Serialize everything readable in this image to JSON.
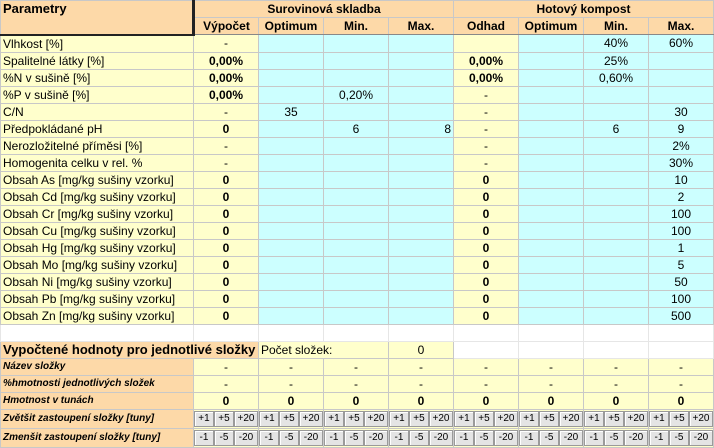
{
  "header": {
    "params_label": "Parametry",
    "group_raw": "Surovinová skladba",
    "group_compost": "Hotový kompost",
    "raw_cols": [
      "Výpočet",
      "Optimum",
      "Min.",
      "Max."
    ],
    "compost_cols": [
      "Odhad",
      "Optimum",
      "Min.",
      "Max."
    ]
  },
  "rows": [
    {
      "label": "Vlhkost [%]",
      "vyp": "-",
      "opt": "",
      "min": "",
      "max": "",
      "odh": "",
      "kopt": "",
      "kmin": "40%",
      "kmax": "60%"
    },
    {
      "label": "Spalitelné látky [%]",
      "vyp": "0,00%",
      "opt": "",
      "min": "",
      "max": "",
      "odh": "0,00%",
      "kopt": "",
      "kmin": "25%",
      "kmax": ""
    },
    {
      "label": "%N v sušině [%]",
      "vyp": "0,00%",
      "opt": "",
      "min": "",
      "max": "",
      "odh": "0,00%",
      "kopt": "",
      "kmin": "0,60%",
      "kmax": ""
    },
    {
      "label": "%P v sušině [%]",
      "vyp": "0,00%",
      "opt": "",
      "min": "0,20%",
      "max": "",
      "odh": "-",
      "kopt": "",
      "kmin": "",
      "kmax": ""
    },
    {
      "label": "C/N",
      "vyp": "-",
      "opt": "35",
      "min": "",
      "max": "",
      "odh": "-",
      "kopt": "",
      "kmin": "",
      "kmax": "30"
    },
    {
      "label": "Předpokládané pH",
      "vyp": "0",
      "opt": "",
      "min": "6",
      "max": "8",
      "odh": "-",
      "kopt": "",
      "kmin": "6",
      "kmax": "9"
    },
    {
      "label": "Nerozložitelné příměsi [%]",
      "vyp": "-",
      "opt": "",
      "min": "",
      "max": "",
      "odh": "-",
      "kopt": "",
      "kmin": "",
      "kmax": "2%"
    },
    {
      "label": "Homogenita celku v rel. %",
      "vyp": "-",
      "opt": "",
      "min": "",
      "max": "",
      "odh": "-",
      "kopt": "",
      "kmin": "",
      "kmax": "30%"
    },
    {
      "label": "Obsah As [mg/kg sušiny vzorku]",
      "vyp": "0",
      "opt": "",
      "min": "",
      "max": "",
      "odh": "0",
      "kopt": "",
      "kmin": "",
      "kmax": "10"
    },
    {
      "label": "Obsah Cd [mg/kg sušiny vzorku]",
      "vyp": "0",
      "opt": "",
      "min": "",
      "max": "",
      "odh": "0",
      "kopt": "",
      "kmin": "",
      "kmax": "2"
    },
    {
      "label": "Obsah Cr [mg/kg sušiny vzorku]",
      "vyp": "0",
      "opt": "",
      "min": "",
      "max": "",
      "odh": "0",
      "kopt": "",
      "kmin": "",
      "kmax": "100"
    },
    {
      "label": "Obsah Cu [mg/kg sušiny vzorku]",
      "vyp": "0",
      "opt": "",
      "min": "",
      "max": "",
      "odh": "0",
      "kopt": "",
      "kmin": "",
      "kmax": "100"
    },
    {
      "label": "Obsah Hg [mg/kg sušiny vzorku]",
      "vyp": "0",
      "opt": "",
      "min": "",
      "max": "",
      "odh": "0",
      "kopt": "",
      "kmin": "",
      "kmax": "1"
    },
    {
      "label": "Obsah Mo [mg/kg sušiny vzorku]",
      "vyp": "0",
      "opt": "",
      "min": "",
      "max": "",
      "odh": "0",
      "kopt": "",
      "kmin": "",
      "kmax": "5"
    },
    {
      "label": "Obsah Ni [mg/kg sušiny vzorku]",
      "vyp": "0",
      "opt": "",
      "min": "",
      "max": "",
      "odh": "0",
      "kopt": "",
      "kmin": "",
      "kmax": "50"
    },
    {
      "label": "Obsah Pb [mg/kg sušiny vzorku]",
      "vyp": "0",
      "opt": "",
      "min": "",
      "max": "",
      "odh": "0",
      "kopt": "",
      "kmin": "",
      "kmax": "100"
    },
    {
      "label": "Obsah Zn [mg/kg sušiny vzorku]",
      "vyp": "0",
      "opt": "",
      "min": "",
      "max": "",
      "odh": "0",
      "kopt": "",
      "kmin": "",
      "kmax": "500"
    }
  ],
  "section": {
    "title": "Vypočtené hodnoty pro jednotlivé složky",
    "count_label": "Počet složek:",
    "count_value": "0"
  },
  "components": {
    "name_label": "Název složky",
    "names": [
      "-",
      "-",
      "-",
      "-",
      "-",
      "-",
      "-",
      "-"
    ],
    "pct_label": "%hmotnosti jednotlivých složek",
    "pcts": [
      "-",
      "-",
      "-",
      "-",
      "-",
      "-",
      "-",
      "-"
    ],
    "mass_label": "Hmotnost v tunách",
    "masses": [
      "0",
      "0",
      "0",
      "0",
      "0",
      "0",
      "0",
      "0"
    ],
    "increase_label": "Zvětšit zastoupení složky  [tuny]",
    "increase_buttons": [
      "+1",
      "+5",
      "+20"
    ],
    "decrease_label": "Zmenšit zastoupení složky [tuny]",
    "decrease_buttons": [
      "-1",
      "-5",
      "-20"
    ]
  }
}
